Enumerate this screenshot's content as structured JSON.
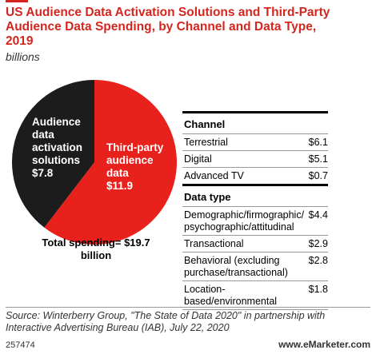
{
  "chart_data": {
    "type": "pie",
    "title": "US Audience Data Activation Solutions and Third-Party Audience Data Spending, by Channel and Data Type, 2019",
    "subtitle": "billions",
    "categories": [
      "Audience data activation solutions",
      "Third-party audience data"
    ],
    "values": [
      7.8,
      11.9
    ],
    "value_labels": [
      "$7.8",
      "$11.9"
    ],
    "colors": [
      "#1c1c1c",
      "#e8211c"
    ],
    "annotation": "Total spending= $19.7 billion"
  },
  "table": {
    "sections": [
      {
        "title": "Channel",
        "rows": [
          [
            "Terrestrial",
            "$6.1"
          ],
          [
            "Digital",
            "$5.1"
          ],
          [
            "Advanced TV",
            "$0.7"
          ]
        ]
      },
      {
        "title": "Data type",
        "rows": [
          [
            "Demographic/firmographic/ psychographic/attitudinal",
            "$4.4"
          ],
          [
            "Transactional",
            "$2.9"
          ],
          [
            "Behavioral (excluding purchase/transactional)",
            "$2.8"
          ],
          [
            "Location-based/environmental",
            "$1.8"
          ]
        ]
      }
    ]
  },
  "source": "Source: Winterberry Group, \"The State of Data 2020\" in partnership with Interactive Advertising Bureau (IAB), July 22, 2020",
  "footer_id": "257474",
  "brand": "www.eMarketer.com"
}
